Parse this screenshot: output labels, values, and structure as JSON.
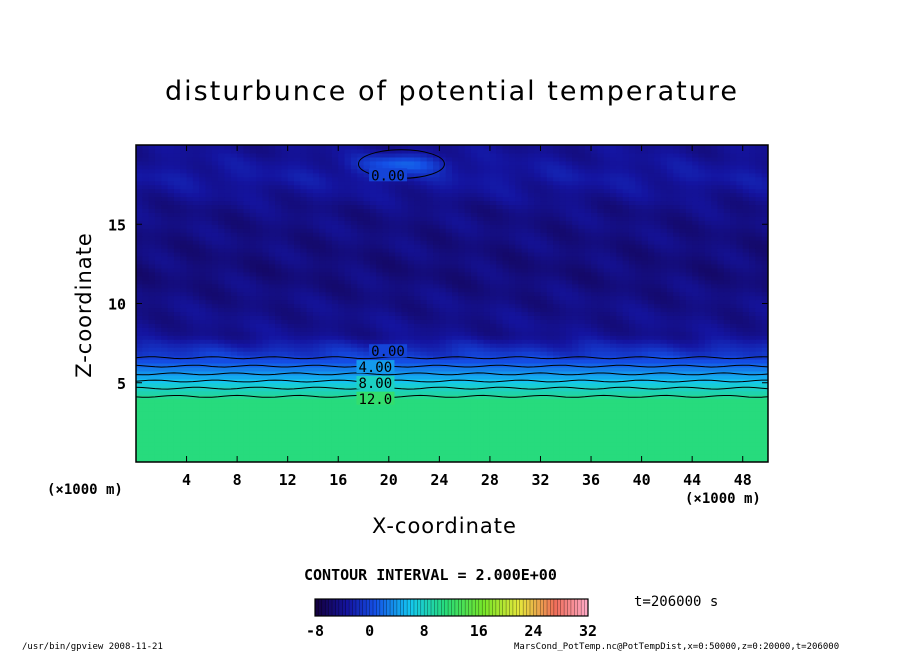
{
  "chart_data": {
    "type": "heatmap",
    "title": "disturbunce of potential temperature",
    "xlabel": "X-coordinate",
    "ylabel": "Z-coordinate",
    "x_unit": "(×1000 m)",
    "y_unit": "(×1000 m)",
    "xlim": [
      0,
      50
    ],
    "ylim": [
      0,
      20
    ],
    "x_ticks": [
      4,
      8,
      12,
      16,
      20,
      24,
      28,
      32,
      36,
      40,
      44,
      48
    ],
    "y_ticks": [
      5,
      10,
      15
    ],
    "contour_labels": [
      {
        "text": "0.00",
        "x": 18.6,
        "z": 17.9
      },
      {
        "text": "0.00",
        "x": 18.6,
        "z": 6.8
      },
      {
        "text": "4.00",
        "x": 17.6,
        "z": 5.8
      },
      {
        "text": "8.00",
        "x": 17.6,
        "z": 4.8
      },
      {
        "text": "12.0",
        "x": 17.6,
        "z": 3.8
      }
    ],
    "contour_interval": "CONTOUR INTERVAL = 2.000E+00",
    "colorbar": {
      "min": -8,
      "max": 32,
      "tick_labels": [
        "-8",
        "0",
        "8",
        "16",
        "24",
        "32"
      ],
      "tick_values": [
        -8,
        0,
        8,
        16,
        24,
        32
      ]
    },
    "time": "t=206000 s",
    "field_profile": [
      {
        "z": 0,
        "value": 11.0
      },
      {
        "z": 4.0,
        "value": 11.0
      },
      {
        "z": 4.2,
        "value": 9.5
      },
      {
        "z": 4.8,
        "value": 7.5
      },
      {
        "z": 5.3,
        "value": 5.0
      },
      {
        "z": 5.8,
        "value": 3.0
      },
      {
        "z": 6.4,
        "value": 0.5
      },
      {
        "z": 8.0,
        "value": -4.0
      },
      {
        "z": 12.0,
        "value": -5.0
      },
      {
        "z": 16.0,
        "value": -4.5
      },
      {
        "z": 18.0,
        "value": -3.0
      },
      {
        "z": 20.0,
        "value": -4.0
      }
    ],
    "warm_anomaly": {
      "x": 21.0,
      "z": 18.8,
      "value": 1.5
    }
  },
  "footer": {
    "left": "/usr/bin/gpview   2008-11-21",
    "right": "MarsCond_PotTemp.nc@PotTempDist,x=0:50000,z=0:20000,t=206000"
  }
}
